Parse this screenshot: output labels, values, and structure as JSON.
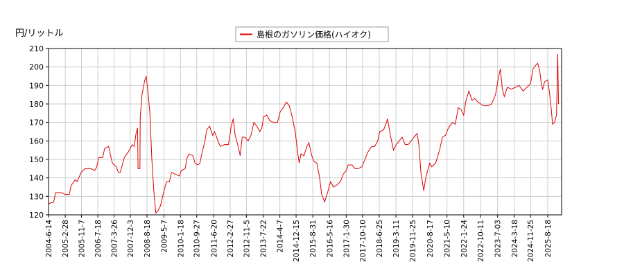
{
  "chart_data": {
    "type": "line",
    "y_label": "円/リットル",
    "legend": "top",
    "grid": true,
    "series": [
      {
        "name": "島根のガソリン価格(ハイオク)",
        "color": "#dd0000",
        "x": [
          "2004-06-14",
          "2004-09-01",
          "2004-10-01",
          "2005-01-01",
          "2005-03-01",
          "2005-05-01",
          "2005-06-01",
          "2005-08-01",
          "2005-09-01",
          "2005-11-01",
          "2006-01-01",
          "2006-04-01",
          "2006-06-01",
          "2006-07-01",
          "2006-08-01",
          "2006-10-01",
          "2006-11-01",
          "2007-01-01",
          "2007-02-01",
          "2007-03-01",
          "2007-05-01",
          "2007-06-01",
          "2007-07-01",
          "2007-09-01",
          "2007-11-01",
          "2008-01-01",
          "2008-02-01",
          "2008-03-01",
          "2008-03-25",
          "2008-04-01",
          "2008-04-30",
          "2008-05-05",
          "2008-06-01",
          "2008-07-15",
          "2008-08-05",
          "2008-09-01",
          "2008-10-01",
          "2008-11-01",
          "2008-12-01",
          "2009-01-01",
          "2009-02-01",
          "2009-03-15",
          "2009-05-01",
          "2009-06-15",
          "2009-08-01",
          "2009-09-01",
          "2009-11-01",
          "2010-01-01",
          "2010-02-01",
          "2010-04-01",
          "2010-05-01",
          "2010-06-01",
          "2010-08-01",
          "2010-09-01",
          "2010-10-15",
          "2010-11-15",
          "2010-12-15",
          "2011-02-01",
          "2011-03-01",
          "2011-04-15",
          "2011-06-01",
          "2011-07-01",
          "2011-09-01",
          "2011-10-01",
          "2011-12-01",
          "2012-02-01",
          "2012-03-15",
          "2012-04-15",
          "2012-05-15",
          "2012-07-01",
          "2012-08-01",
          "2012-09-01",
          "2012-10-15",
          "2012-12-01",
          "2013-01-15",
          "2013-03-01",
          "2013-04-15",
          "2013-06-01",
          "2013-07-01",
          "2013-08-01",
          "2013-09-15",
          "2013-11-01",
          "2014-01-01",
          "2014-03-01",
          "2014-04-15",
          "2014-06-01",
          "2014-07-15",
          "2014-09-01",
          "2014-10-15",
          "2014-12-01",
          "2015-01-15",
          "2015-02-01",
          "2015-03-01",
          "2015-04-15",
          "2015-06-01",
          "2015-07-01",
          "2015-08-15",
          "2015-09-15",
          "2015-11-01",
          "2015-12-15",
          "2016-01-15",
          "2016-03-01",
          "2016-04-15",
          "2016-06-01",
          "2016-07-15",
          "2016-09-01",
          "2016-11-01",
          "2016-12-15",
          "2017-02-01",
          "2017-03-01",
          "2017-05-01",
          "2017-06-15",
          "2017-08-01",
          "2017-10-01",
          "2017-11-15",
          "2018-01-01",
          "2018-03-01",
          "2018-04-15",
          "2018-06-01",
          "2018-07-01",
          "2018-09-01",
          "2018-10-15",
          "2018-11-01",
          "2018-12-15",
          "2019-02-01",
          "2019-03-15",
          "2019-05-01",
          "2019-06-15",
          "2019-08-01",
          "2019-09-15",
          "2019-11-01",
          "2019-12-15",
          "2020-02-01",
          "2020-03-01",
          "2020-04-01",
          "2020-05-15",
          "2020-06-15",
          "2020-08-15",
          "2020-09-15",
          "2020-11-15",
          "2021-01-15",
          "2021-03-01",
          "2021-04-15",
          "2021-06-01",
          "2021-08-01",
          "2021-09-15",
          "2021-11-01",
          "2021-12-15",
          "2022-01-24",
          "2022-03-01",
          "2022-04-15",
          "2022-06-01",
          "2022-07-15",
          "2022-09-01",
          "2022-10-15",
          "2022-12-01",
          "2023-02-01",
          "2023-04-01",
          "2023-06-01",
          "2023-07-15",
          "2023-08-15",
          "2023-09-15",
          "2023-10-15",
          "2023-12-01",
          "2024-02-01",
          "2024-04-01",
          "2024-06-01",
          "2024-08-01",
          "2024-10-01",
          "2024-11-25",
          "2025-01-01",
          "2025-02-15",
          "2025-03-15",
          "2025-04-15",
          "2025-05-15",
          "2025-06-01",
          "2025-07-01",
          "2025-08-18",
          "2025-09-15",
          "2025-10-15",
          "2025-11-01",
          "2025-12-01",
          "2026-01-01",
          "2026-01-20",
          "2026-02-01"
        ],
        "values": [
          126,
          127,
          132,
          132,
          131,
          131,
          136,
          139,
          138,
          143,
          145,
          145,
          144,
          146,
          151,
          151,
          156,
          157,
          152,
          148,
          146,
          143,
          143,
          151,
          154,
          158,
          157,
          164,
          167,
          145,
          145,
          173,
          185,
          193,
          195,
          187,
          175,
          150,
          133,
          121,
          122,
          125,
          132,
          138,
          138,
          143,
          142,
          141,
          144,
          145,
          151,
          153,
          152,
          148,
          147,
          148,
          153,
          160,
          166,
          168,
          163,
          165,
          159,
          157,
          158,
          158,
          168,
          172,
          163,
          157,
          152,
          162,
          162,
          160,
          163,
          170,
          168,
          165,
          167,
          173,
          174,
          171,
          170,
          170,
          176,
          178,
          181,
          179,
          173,
          165,
          152,
          148,
          153,
          152,
          157,
          159,
          152,
          149,
          148,
          140,
          131,
          127,
          132,
          138,
          135,
          136,
          138,
          142,
          144,
          147,
          147,
          145,
          145,
          146,
          150,
          154,
          157,
          157,
          160,
          165,
          166,
          170,
          172,
          163,
          155,
          158,
          160,
          162,
          158,
          158,
          160,
          162,
          164,
          158,
          143,
          133,
          140,
          148,
          146,
          148,
          155,
          162,
          163,
          167,
          170,
          169,
          178,
          177,
          174,
          182,
          187,
          182,
          183,
          181,
          180,
          179,
          179,
          180,
          185,
          194,
          199,
          188,
          184,
          189,
          188,
          189,
          190,
          187,
          189,
          191,
          199,
          201,
          202,
          198,
          190,
          188,
          192,
          193,
          186,
          176,
          169,
          170,
          174,
          207,
          180
        ]
      }
    ],
    "xlim": [
      "2004-06-14",
      "2026-03-21"
    ],
    "xticks": [
      {
        "value": "2004-06-14",
        "label": "2004-6-14"
      },
      {
        "value": "2005-02-28",
        "label": "2005-2-28"
      },
      {
        "value": "2005-11-07",
        "label": "2005-11-7"
      },
      {
        "value": "2006-07-18",
        "label": "2006-7-18"
      },
      {
        "value": "2007-03-26",
        "label": "2007-3-26"
      },
      {
        "value": "2007-12-03",
        "label": "2007-12-3"
      },
      {
        "value": "2008-08-18",
        "label": "2008-8-18"
      },
      {
        "value": "2009-05-07",
        "label": "2009-5-7"
      },
      {
        "value": "2010-01-18",
        "label": "2010-1-18"
      },
      {
        "value": "2010-09-27",
        "label": "2010-9-27"
      },
      {
        "value": "2011-06-20",
        "label": "2011-6-20"
      },
      {
        "value": "2012-02-27",
        "label": "2012-2-27"
      },
      {
        "value": "2012-11-05",
        "label": "2012-11-5"
      },
      {
        "value": "2013-07-22",
        "label": "2013-7-22"
      },
      {
        "value": "2014-04-07",
        "label": "2014-4-7"
      },
      {
        "value": "2014-12-15",
        "label": "2014-12-15"
      },
      {
        "value": "2015-08-31",
        "label": "2015-8-31"
      },
      {
        "value": "2016-05-16",
        "label": "2016-5-16"
      },
      {
        "value": "2017-01-30",
        "label": "2017-1-30"
      },
      {
        "value": "2017-10-10",
        "label": "2017-10-10"
      },
      {
        "value": "2018-06-25",
        "label": "2018-6-25"
      },
      {
        "value": "2019-03-11",
        "label": "2019-3-11"
      },
      {
        "value": "2019-11-25",
        "label": "2019-11-25"
      },
      {
        "value": "2020-08-17",
        "label": "2020-8-17"
      },
      {
        "value": "2021-05-10",
        "label": "2021-5-10"
      },
      {
        "value": "2022-01-24",
        "label": "2022-1-24"
      },
      {
        "value": "2022-10-11",
        "label": "2022-10-11"
      },
      {
        "value": "2023-07-03",
        "label": "2023-7-03"
      },
      {
        "value": "2024-03-18",
        "label": "2024-3-18"
      },
      {
        "value": "2024-11-25",
        "label": "2024-11-25"
      },
      {
        "value": "2025-08-18",
        "label": "2025-8-18"
      }
    ],
    "ylim": [
      120,
      210
    ],
    "yticks": [
      120,
      130,
      140,
      150,
      160,
      170,
      180,
      190,
      200,
      210
    ]
  }
}
